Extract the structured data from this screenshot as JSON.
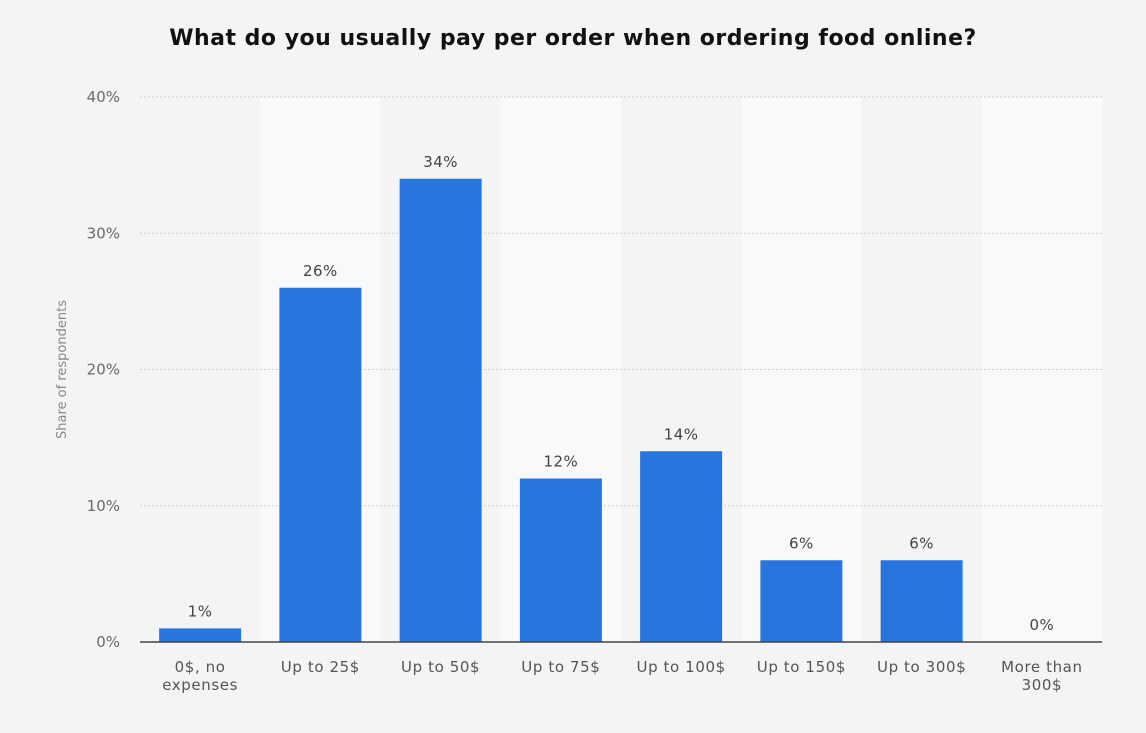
{
  "chart_data": {
    "type": "bar",
    "title": "What do you usually pay per order when ordering food online?",
    "ylabel": "Share of respondents",
    "xlabel": "",
    "ylim": [
      0,
      40
    ],
    "yticks": [
      0,
      10,
      20,
      30,
      40
    ],
    "ytick_labels": [
      "0%",
      "10%",
      "20%",
      "30%",
      "40%"
    ],
    "categories": [
      "0$, no expenses",
      "Up to 25$",
      "Up to 50$",
      "Up to 75$",
      "Up to 100$",
      "Up to 150$",
      "Up to 300$",
      "More than 300$"
    ],
    "category_lines": [
      [
        "0$, no",
        "expenses"
      ],
      [
        "Up to 25$"
      ],
      [
        "Up to 50$"
      ],
      [
        "Up to 75$"
      ],
      [
        "Up to 100$"
      ],
      [
        "Up to 150$"
      ],
      [
        "Up to 300$"
      ],
      [
        "More than",
        "300$"
      ]
    ],
    "values": [
      1,
      26,
      34,
      12,
      14,
      6,
      6,
      0
    ],
    "value_labels": [
      "1%",
      "26%",
      "34%",
      "12%",
      "14%",
      "6%",
      "6%",
      "0%"
    ],
    "grid": true,
    "legend": "none",
    "colors": {
      "bar": "#2876dd",
      "background": "#f4f4f4",
      "band": "#f9f9f9",
      "grid": "#cfcfcf",
      "axis": "#444444"
    }
  }
}
